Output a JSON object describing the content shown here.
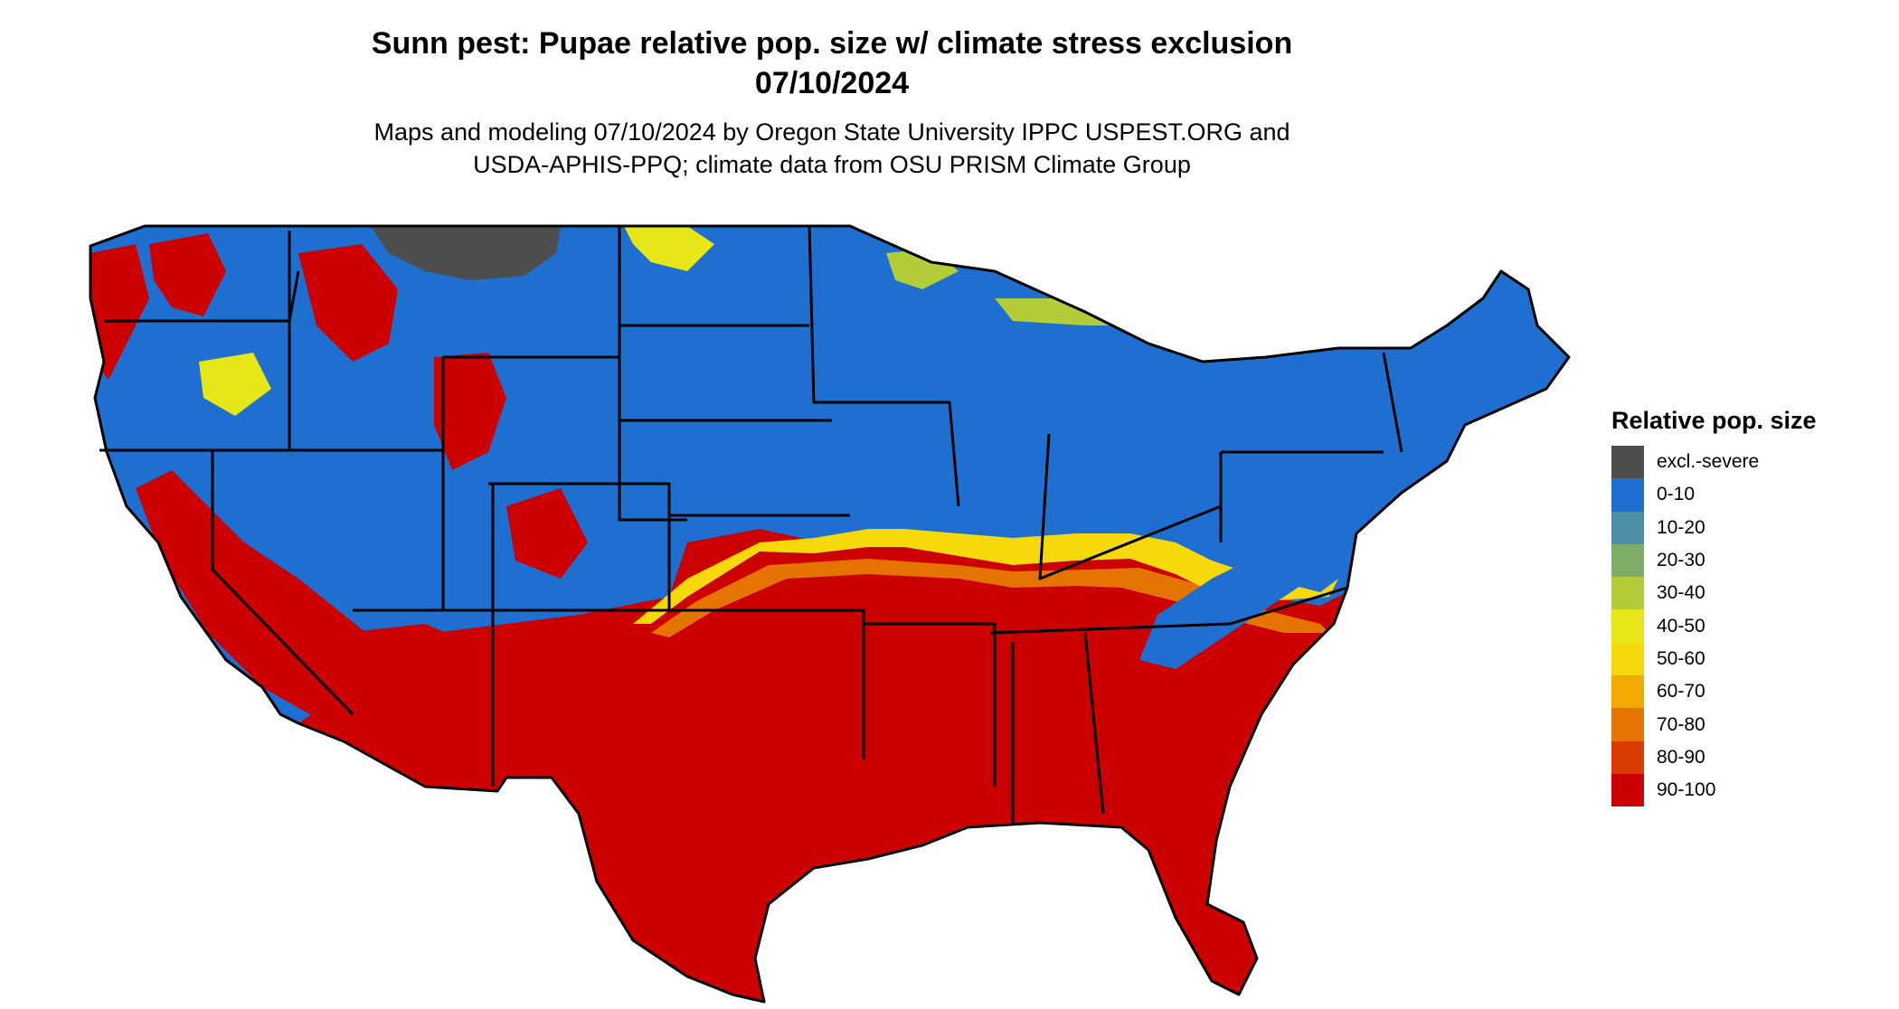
{
  "title": {
    "line1": "Sunn pest: Pupae relative pop. size w/ climate stress exclusion",
    "line2": "07/10/2024"
  },
  "subtitle": {
    "line1": "Maps and modeling 07/10/2024 by Oregon State University IPPC USPEST.ORG and",
    "line2": "USDA-APHIS-PPQ; climate data from OSU PRISM Climate Group"
  },
  "legend": {
    "title": "Relative pop. size",
    "items": [
      {
        "label": "excl.-severe",
        "color": "#4d4d4d"
      },
      {
        "label": "0-10",
        "color": "#1e6fcf"
      },
      {
        "label": "10-20",
        "color": "#4a8fa3"
      },
      {
        "label": "20-30",
        "color": "#7fae6b"
      },
      {
        "label": "30-40",
        "color": "#b3cc3a"
      },
      {
        "label": "40-50",
        "color": "#e6e619"
      },
      {
        "label": "50-60",
        "color": "#f5d90a"
      },
      {
        "label": "60-70",
        "color": "#f0aa00"
      },
      {
        "label": "70-80",
        "color": "#e57300"
      },
      {
        "label": "80-90",
        "color": "#d93d00"
      },
      {
        "label": "90-100",
        "color": "#cc0000"
      }
    ]
  },
  "map": {
    "region": "contiguous United States",
    "border_color": "#000000"
  }
}
